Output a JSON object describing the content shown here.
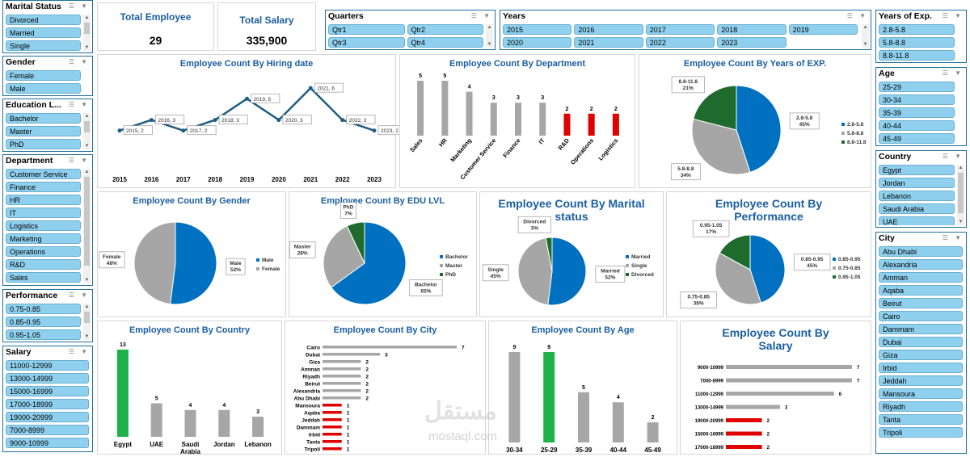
{
  "kpis": {
    "total_employee_label": "Total Employee",
    "total_employee_value": "29",
    "total_salary_label": "Total Salary",
    "total_salary_value": "335,900"
  },
  "slicers": {
    "marital": {
      "title": "Marital Status",
      "items": [
        "Divorced",
        "Married",
        "Single"
      ]
    },
    "gender": {
      "title": "Gender",
      "items": [
        "Female",
        "Male"
      ]
    },
    "education": {
      "title": "Education L...",
      "items": [
        "Bachelor",
        "Master",
        "PhD"
      ]
    },
    "department": {
      "title": "Department",
      "items": [
        "Customer Service",
        "Finance",
        "HR",
        "IT",
        "Logistics",
        "Marketing",
        "Operations",
        "R&D",
        "Sales"
      ]
    },
    "performance": {
      "title": "Performance",
      "items": [
        "0.75-0.85",
        "0.85-0.95",
        "0.95-1.05"
      ]
    },
    "salary": {
      "title": "Salary",
      "items": [
        "11000-12999",
        "13000-14999",
        "15000-16999",
        "17000-18999",
        "19000-20999",
        "7000-8999",
        "9000-10999"
      ]
    },
    "quarters": {
      "title": "Quarters",
      "items": [
        "Qtr1",
        "Qtr2",
        "Qtr3",
        "Qtr4"
      ]
    },
    "years": {
      "title": "Years",
      "items": [
        "2015",
        "2016",
        "2017",
        "2018",
        "2019",
        "2020",
        "2021",
        "2022",
        "2023"
      ]
    },
    "years_exp": {
      "title": "Years of Exp.",
      "items": [
        "2.8-5.8",
        "5.8-8.8",
        "8.8-11.8"
      ]
    },
    "age": {
      "title": "Age",
      "items": [
        "25-29",
        "30-34",
        "35-39",
        "40-44",
        "45-49"
      ]
    },
    "country": {
      "title": "Country",
      "items": [
        "Egypt",
        "Jordan",
        "Lebanon",
        "Saudi Arabia",
        "UAE"
      ]
    },
    "city": {
      "title": "City",
      "items": [
        "Abu Dhabi",
        "Alexandria",
        "Amman",
        "Aqaba",
        "Beirut",
        "Cairo",
        "Dammam",
        "Dubai",
        "Giza",
        "Irbid",
        "Jeddah",
        "Mansoura",
        "Riyadh",
        "Tanta",
        "Tripoli"
      ]
    }
  },
  "colors": {
    "blue": "#0070c0",
    "gray": "#a6a6a6",
    "green": "#1e6b2d",
    "red": "#e00000",
    "bright_green": "#1fb24a",
    "line": "#1f5d83",
    "title": "#1a5fa0"
  },
  "watermark": {
    "arabic": "مستقل",
    "latin": "mostaql.com"
  },
  "chart_data": [
    {
      "id": "hiring",
      "type": "line",
      "title": "Employee Count By Hiring date",
      "categories": [
        "2015",
        "2016",
        "2017",
        "2018",
        "2019",
        "2020",
        "2021",
        "2022",
        "2023"
      ],
      "values": [
        2,
        3,
        2,
        3,
        5,
        3,
        6,
        3,
        2
      ],
      "data_labels": [
        "2015, 2",
        "2016, 3",
        "2017, 2",
        "2018, 3",
        "2019, 5",
        "2020, 3",
        "2021, 6",
        "2022, 3",
        "2023, 2"
      ]
    },
    {
      "id": "department",
      "type": "bar",
      "title": "Employee Count By Department",
      "categories": [
        "Sales",
        "HR",
        "Marketing",
        "Customer Service",
        "Finance",
        "IT",
        "R&D",
        "Operations",
        "Logistics"
      ],
      "values": [
        5,
        5,
        4,
        3,
        3,
        3,
        2,
        2,
        2
      ],
      "highlight": [
        false,
        false,
        false,
        false,
        false,
        false,
        true,
        true,
        true
      ]
    },
    {
      "id": "years_exp",
      "type": "pie",
      "title": "Employee Count By Years of EXP.",
      "slices": [
        {
          "name": "2.8-5.8",
          "value": 45,
          "label": "2.8-5.8\n45%",
          "color": "#0070c0"
        },
        {
          "name": "5.8-8.8",
          "value": 34,
          "label": "5.8-8.8\n34%",
          "color": "#a6a6a6"
        },
        {
          "name": "8.8-11.8",
          "value": 21,
          "label": "8.8-11.8\n21%",
          "color": "#1e6b2d"
        }
      ],
      "legend": [
        "2.8-5.8",
        "5.8-8.8",
        "8.8-11.8"
      ]
    },
    {
      "id": "gender",
      "type": "pie",
      "title": "Employee Count By Gender",
      "slices": [
        {
          "name": "Male",
          "value": 52,
          "label": "Male\n52%",
          "color": "#0070c0"
        },
        {
          "name": "Female",
          "value": 48,
          "label": "Female\n48%",
          "color": "#a6a6a6"
        }
      ],
      "legend": [
        "Male",
        "Female"
      ]
    },
    {
      "id": "edu",
      "type": "pie",
      "title": "Employee Count By EDU LVL",
      "slices": [
        {
          "name": "Bachelor",
          "value": 65,
          "label": "Bachelor\n65%",
          "color": "#0070c0"
        },
        {
          "name": "Master",
          "value": 28,
          "label": "Master\n28%",
          "color": "#a6a6a6"
        },
        {
          "name": "PhD",
          "value": 7,
          "label": "PhD\n7%",
          "color": "#1e6b2d"
        }
      ],
      "legend": [
        "Bachelor",
        "Master",
        "PhD"
      ]
    },
    {
      "id": "marital",
      "type": "pie",
      "title": "Employee Count By Marital status",
      "slices": [
        {
          "name": "Married",
          "value": 52,
          "label": "Married\n52%",
          "color": "#0070c0"
        },
        {
          "name": "Single",
          "value": 45,
          "label": "Single\n45%",
          "color": "#a6a6a6"
        },
        {
          "name": "Divorced",
          "value": 3,
          "label": "Divorced\n3%",
          "color": "#1e6b2d"
        }
      ],
      "legend": [
        "Married",
        "Single",
        "Divorced"
      ]
    },
    {
      "id": "performance",
      "type": "pie",
      "title": "Employee Count By Performance",
      "slices": [
        {
          "name": "0.85-0.95",
          "value": 45,
          "label": "0.85-0.95\n45%",
          "color": "#0070c0"
        },
        {
          "name": "0.75-0.85",
          "value": 38,
          "label": "0.75-0.85\n38%",
          "color": "#a6a6a6"
        },
        {
          "name": "0.95-1.05",
          "value": 17,
          "label": "0.95-1.05\n17%",
          "color": "#1e6b2d"
        }
      ],
      "legend": [
        "0.85-0.95",
        "0.75-0.85",
        "0.95-1.05"
      ]
    },
    {
      "id": "country",
      "type": "bar",
      "title": "Employee Count By Country",
      "categories": [
        "Egypt",
        "UAE",
        "Saudi Arabia",
        "Jordan",
        "Lebanon"
      ],
      "values": [
        13,
        5,
        4,
        4,
        3
      ],
      "highlight": [
        true,
        false,
        false,
        false,
        false
      ]
    },
    {
      "id": "city",
      "type": "bar",
      "orientation": "horizontal",
      "title": "Employee Count By City",
      "categories": [
        "Cairo",
        "Dubai",
        "Giza",
        "Amman",
        "Riyadh",
        "Beirut",
        "Alexandria",
        "Abu Dhabi",
        "Mansoura",
        "Aqaba",
        "Jeddah",
        "Dammam",
        "Irbid",
        "Tanta",
        "Tripoli"
      ],
      "values": [
        7,
        3,
        2,
        2,
        2,
        2,
        2,
        2,
        1,
        1,
        1,
        1,
        1,
        1,
        1
      ],
      "highlight": [
        false,
        false,
        false,
        false,
        false,
        false,
        false,
        false,
        true,
        true,
        true,
        true,
        true,
        true,
        true
      ]
    },
    {
      "id": "age",
      "type": "bar",
      "title": "Employee Count By Age",
      "categories": [
        "30-34",
        "25-29",
        "35-39",
        "40-44",
        "45-49"
      ],
      "values": [
        9,
        9,
        5,
        4,
        2
      ],
      "highlight": [
        false,
        true,
        false,
        false,
        false
      ]
    },
    {
      "id": "salary",
      "type": "bar",
      "orientation": "horizontal",
      "title": "Employee Count By Salary",
      "categories": [
        "9000-10999",
        "7000-8999",
        "11000-12999",
        "13000-14999",
        "19000-20999",
        "15000-16999",
        "17000-18999"
      ],
      "values": [
        7,
        7,
        6,
        3,
        2,
        2,
        2
      ],
      "highlight": [
        false,
        false,
        false,
        false,
        true,
        true,
        true
      ]
    }
  ]
}
